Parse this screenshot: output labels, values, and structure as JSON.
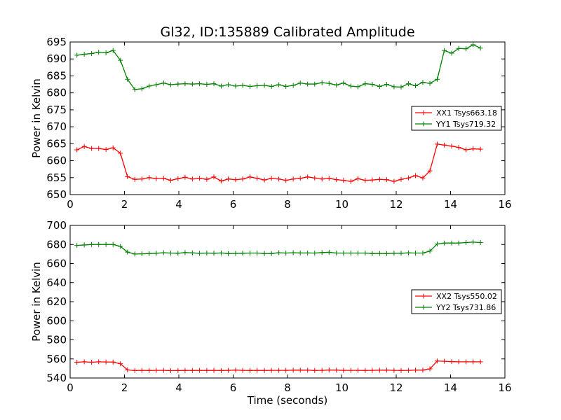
{
  "chart_data": [
    {
      "type": "line",
      "title": "Gl32, ID:135889 Calibrated Amplitude",
      "xlabel": "",
      "ylabel": "Power in Kelvin",
      "xlim": [
        0,
        16
      ],
      "ylim": [
        650,
        695
      ],
      "xticks": [
        0,
        2,
        4,
        6,
        8,
        10,
        12,
        14,
        16
      ],
      "yticks": [
        650,
        655,
        660,
        665,
        670,
        675,
        680,
        685,
        690,
        695
      ],
      "legend_position": "center-right",
      "series": [
        {
          "name": "XX1 Tsys663.18",
          "color": "#ff0000",
          "x": [
            0.25,
            0.52,
            0.79,
            1.05,
            1.32,
            1.58,
            1.85,
            2.11,
            2.38,
            2.64,
            2.91,
            3.17,
            3.44,
            3.7,
            3.97,
            4.23,
            4.5,
            4.76,
            5.03,
            5.29,
            5.56,
            5.82,
            6.09,
            6.35,
            6.62,
            6.88,
            7.15,
            7.41,
            7.68,
            7.94,
            8.21,
            8.47,
            8.74,
            9.0,
            9.27,
            9.53,
            9.8,
            10.06,
            10.33,
            10.59,
            10.86,
            11.12,
            11.39,
            11.65,
            11.92,
            12.18,
            12.45,
            12.71,
            12.98,
            13.24,
            13.51,
            13.77,
            14.04,
            14.3,
            14.57,
            14.83,
            15.1
          ],
          "y": [
            663.2,
            664.2,
            663.6,
            663.6,
            663.3,
            663.8,
            662.2,
            655.3,
            654.5,
            654.6,
            655.0,
            654.7,
            654.8,
            654.2,
            654.7,
            655.1,
            654.6,
            654.8,
            654.5,
            655.2,
            654.0,
            654.6,
            654.4,
            654.6,
            655.2,
            654.8,
            654.3,
            654.8,
            654.6,
            654.2,
            654.6,
            654.8,
            655.2,
            654.9,
            654.6,
            654.8,
            654.4,
            654.2,
            653.9,
            654.7,
            654.2,
            654.3,
            654.5,
            654.4,
            653.9,
            654.5,
            654.9,
            655.6,
            654.9,
            657.0,
            664.9,
            664.6,
            664.3,
            663.9,
            663.2,
            663.5,
            663.4
          ]
        },
        {
          "name": "YY1 Tsys719.32",
          "color": "#008000",
          "x": [
            0.25,
            0.52,
            0.79,
            1.05,
            1.32,
            1.58,
            1.85,
            2.11,
            2.38,
            2.64,
            2.91,
            3.17,
            3.44,
            3.7,
            3.97,
            4.23,
            4.5,
            4.76,
            5.03,
            5.29,
            5.56,
            5.82,
            6.09,
            6.35,
            6.62,
            6.88,
            7.15,
            7.41,
            7.68,
            7.94,
            8.21,
            8.47,
            8.74,
            9.0,
            9.27,
            9.53,
            9.8,
            10.06,
            10.33,
            10.59,
            10.86,
            11.12,
            11.39,
            11.65,
            11.92,
            12.18,
            12.45,
            12.71,
            12.98,
            13.24,
            13.51,
            13.77,
            14.04,
            14.3,
            14.57,
            14.83,
            15.1
          ],
          "y": [
            691.1,
            691.4,
            691.6,
            692.0,
            691.8,
            692.5,
            689.6,
            684.0,
            681.0,
            681.2,
            682.0,
            682.4,
            682.9,
            682.4,
            682.6,
            682.7,
            682.6,
            682.7,
            682.5,
            682.7,
            682.0,
            682.4,
            682.0,
            682.2,
            681.9,
            682.1,
            682.2,
            681.9,
            682.4,
            681.9,
            682.2,
            682.9,
            682.6,
            682.6,
            683.0,
            682.8,
            682.3,
            682.9,
            682.0,
            681.8,
            682.7,
            682.5,
            681.9,
            682.5,
            681.8,
            681.7,
            682.7,
            682.1,
            683.1,
            682.8,
            684.0,
            692.5,
            691.7,
            693.1,
            693.0,
            694.2,
            693.2
          ]
        }
      ]
    },
    {
      "type": "line",
      "title": "",
      "xlabel": "Time (seconds)",
      "ylabel": "Power in Kelvin",
      "xlim": [
        0,
        16
      ],
      "ylim": [
        540,
        700
      ],
      "xticks": [
        0,
        2,
        4,
        6,
        8,
        10,
        12,
        14,
        16
      ],
      "yticks": [
        540,
        560,
        580,
        600,
        620,
        640,
        660,
        680,
        700
      ],
      "legend_position": "center-right",
      "series": [
        {
          "name": "XX2 Tsys550.02",
          "color": "#ff0000",
          "x": [
            0.25,
            0.52,
            0.79,
            1.05,
            1.32,
            1.58,
            1.85,
            2.11,
            2.38,
            2.64,
            2.91,
            3.17,
            3.44,
            3.7,
            3.97,
            4.23,
            4.5,
            4.76,
            5.03,
            5.29,
            5.56,
            5.82,
            6.09,
            6.35,
            6.62,
            6.88,
            7.15,
            7.41,
            7.68,
            7.94,
            8.21,
            8.47,
            8.74,
            9.0,
            9.27,
            9.53,
            9.8,
            10.06,
            10.33,
            10.59,
            10.86,
            11.12,
            11.39,
            11.65,
            11.92,
            12.18,
            12.45,
            12.71,
            12.98,
            13.24,
            13.51,
            13.77,
            14.04,
            14.3,
            14.57,
            14.83,
            15.1
          ],
          "y": [
            556.5,
            557.0,
            556.5,
            557.0,
            556.8,
            556.7,
            555.0,
            548.5,
            547.8,
            548.0,
            547.9,
            548.0,
            548.0,
            547.7,
            547.8,
            547.9,
            547.9,
            548.0,
            547.9,
            548.0,
            547.8,
            548.0,
            548.3,
            548.0,
            547.9,
            548.0,
            547.9,
            548.0,
            548.0,
            548.0,
            548.2,
            548.3,
            548.2,
            547.9,
            548.0,
            548.4,
            548.3,
            548.0,
            548.0,
            548.0,
            547.9,
            548.0,
            548.2,
            548.3,
            548.0,
            547.9,
            548.0,
            548.3,
            548.3,
            549.5,
            557.8,
            557.5,
            557.2,
            557.0,
            557.0,
            557.0,
            557.0
          ]
        },
        {
          "name": "YY2 Tsys731.86",
          "color": "#008000",
          "x": [
            0.25,
            0.52,
            0.79,
            1.05,
            1.32,
            1.58,
            1.85,
            2.11,
            2.38,
            2.64,
            2.91,
            3.17,
            3.44,
            3.7,
            3.97,
            4.23,
            4.5,
            4.76,
            5.03,
            5.29,
            5.56,
            5.82,
            6.09,
            6.35,
            6.62,
            6.88,
            7.15,
            7.41,
            7.68,
            7.94,
            8.21,
            8.47,
            8.74,
            9.0,
            9.27,
            9.53,
            9.8,
            10.06,
            10.33,
            10.59,
            10.86,
            11.12,
            11.39,
            11.65,
            11.92,
            12.18,
            12.45,
            12.71,
            12.98,
            13.24,
            13.51,
            13.77,
            14.04,
            14.3,
            14.57,
            14.83,
            15.1
          ],
          "y": [
            679.0,
            679.5,
            680.0,
            680.0,
            680.0,
            680.0,
            678.0,
            672.0,
            670.0,
            670.2,
            670.5,
            670.8,
            671.4,
            671.0,
            670.8,
            671.5,
            671.2,
            670.7,
            671.0,
            670.8,
            671.1,
            670.5,
            670.6,
            670.8,
            671.0,
            671.0,
            670.5,
            670.5,
            671.4,
            671.0,
            671.4,
            671.1,
            671.1,
            671.0,
            671.5,
            671.8,
            671.0,
            671.0,
            671.0,
            671.0,
            671.0,
            670.5,
            670.6,
            670.5,
            670.8,
            670.8,
            671.2,
            671.0,
            671.0,
            673.0,
            680.5,
            681.5,
            681.5,
            681.5,
            682.0,
            682.5,
            682.0
          ]
        }
      ]
    }
  ]
}
